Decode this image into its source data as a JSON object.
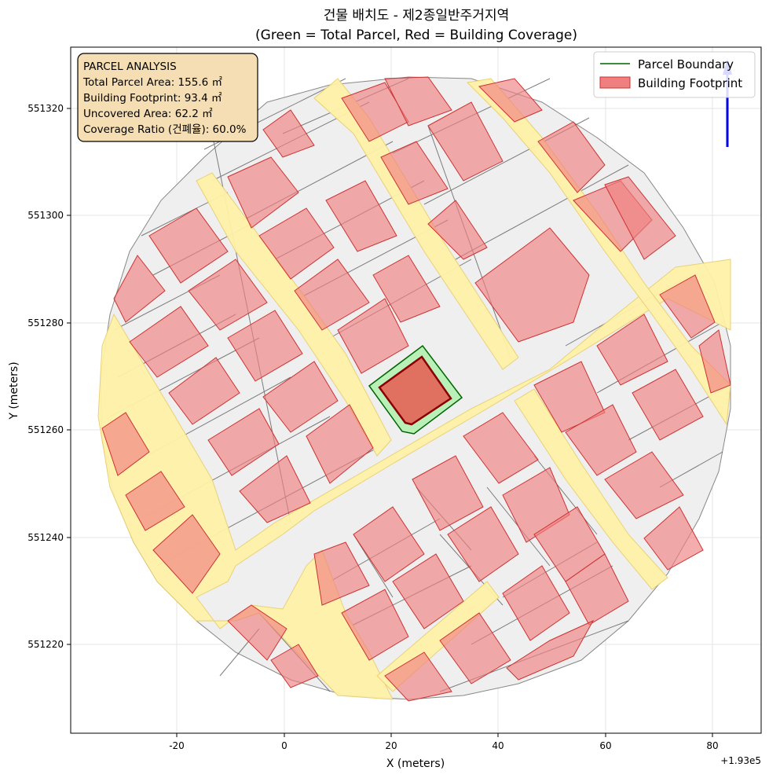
{
  "title": {
    "line1": "건물 배치도 - 제2종일반주거지역",
    "line2": "(Green = Total Parcel, Red = Building Coverage)"
  },
  "axes": {
    "xlabel": "X (meters)",
    "ylabel": "Y (meters)",
    "x_offset_label": "+1.93e5",
    "x_ticks": [
      "-20",
      "0",
      "20",
      "40",
      "60",
      "80"
    ],
    "y_ticks": [
      "551220",
      "551240",
      "551260",
      "551280",
      "551300",
      "551320"
    ]
  },
  "info_box": {
    "heading": "PARCEL ANALYSIS",
    "line1": "Total Parcel Area: 155.6 ㎡",
    "line2": "Building Footprint: 93.4 ㎡",
    "line3": "Uncovered Area: 62.2 ㎡",
    "line4": "Coverage Ratio (건폐율): 60.0%"
  },
  "legend": {
    "parcel_label": "Parcel Boundary",
    "building_label": "Building Footprint"
  },
  "colors": {
    "road": "#fff2a8",
    "parcel_fill": "#efefef",
    "parcel_line": "#555555",
    "building": "#f08080",
    "building_edge": "#cc3333",
    "target_parcel_fill": "#b8f0b8",
    "target_parcel_line": "#006400",
    "target_building": "#e07060",
    "target_building_edge": "#8b0000",
    "info_box_bg": "#f5deb3",
    "north_arrow": "#0000ee"
  },
  "north_arrow_icon": "north-arrow-icon"
}
